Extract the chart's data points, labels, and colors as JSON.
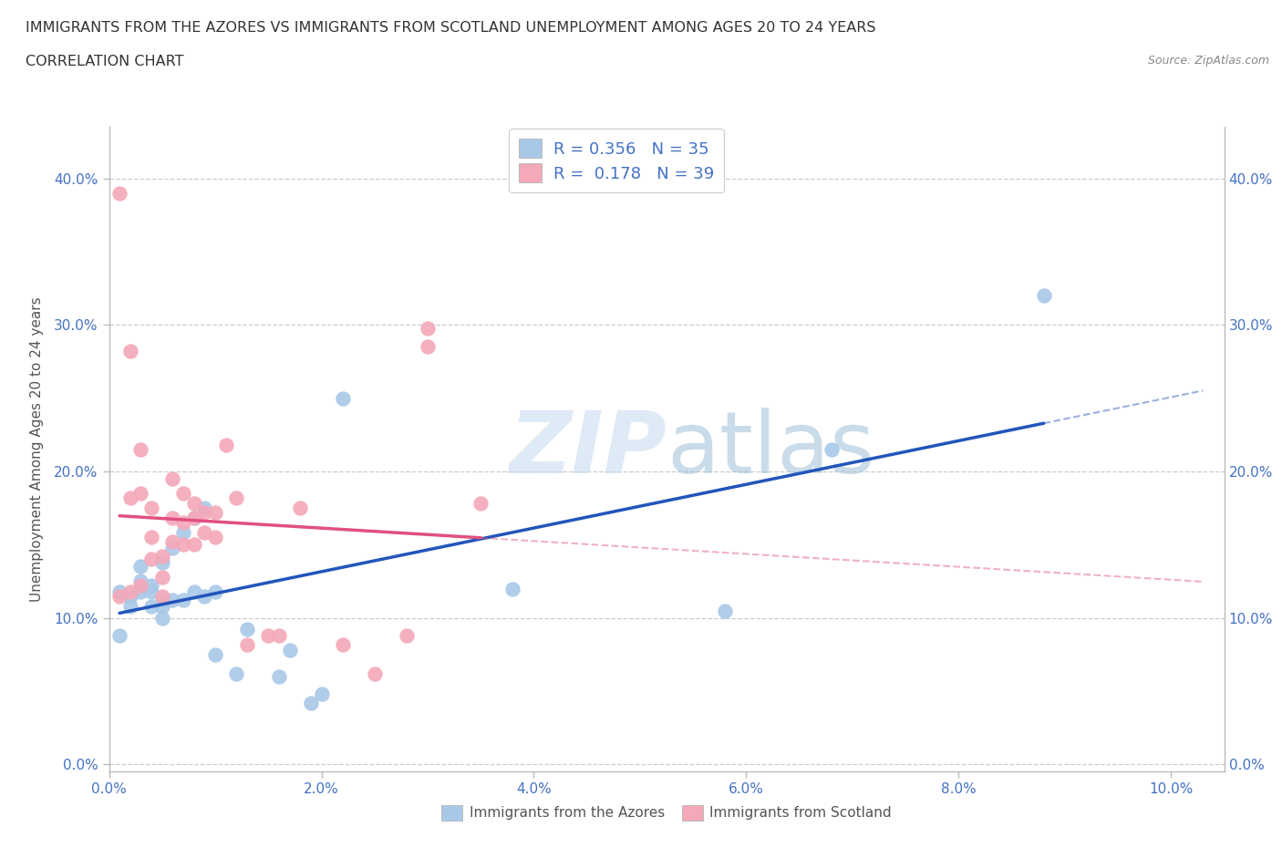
{
  "title_line1": "IMMIGRANTS FROM THE AZORES VS IMMIGRANTS FROM SCOTLAND UNEMPLOYMENT AMONG AGES 20 TO 24 YEARS",
  "title_line2": "CORRELATION CHART",
  "source_text": "Source: ZipAtlas.com",
  "ylabel": "Unemployment Among Ages 20 to 24 years",
  "xlim": [
    0.0,
    0.105
  ],
  "ylim": [
    -0.005,
    0.435
  ],
  "xticks": [
    0.0,
    0.02,
    0.04,
    0.06,
    0.08,
    0.1
  ],
  "yticks": [
    0.0,
    0.1,
    0.2,
    0.3,
    0.4
  ],
  "ytick_labels": [
    "0.0%",
    "10.0%",
    "20.0%",
    "30.0%",
    "40.0%"
  ],
  "xtick_labels": [
    "0.0%",
    "2.0%",
    "4.0%",
    "6.0%",
    "8.0%",
    "10.0%"
  ],
  "legend_r1": "0.356",
  "legend_n1": "35",
  "legend_r2": "0.178",
  "legend_n2": "39",
  "color_azores": "#a8c8e8",
  "color_scotland": "#f4a8b8",
  "color_azores_line": "#2255bb",
  "color_scotland_line": "#e05080",
  "color_tick_labels": "#4472c4",
  "watermark_color": "#c8ddf0",
  "legend_labels": [
    "Immigrants from the Azores",
    "Immigrants from Scotland"
  ],
  "azores_x": [
    0.001,
    0.001,
    0.002,
    0.002,
    0.003,
    0.003,
    0.003,
    0.004,
    0.004,
    0.004,
    0.005,
    0.005,
    0.005,
    0.005,
    0.006,
    0.006,
    0.007,
    0.007,
    0.008,
    0.008,
    0.009,
    0.009,
    0.01,
    0.01,
    0.012,
    0.013,
    0.016,
    0.017,
    0.019,
    0.02,
    0.022,
    0.038,
    0.058,
    0.068,
    0.088
  ],
  "azores_y": [
    0.118,
    0.088,
    0.108,
    0.115,
    0.118,
    0.125,
    0.135,
    0.108,
    0.118,
    0.122,
    0.1,
    0.108,
    0.112,
    0.138,
    0.112,
    0.148,
    0.112,
    0.158,
    0.118,
    0.168,
    0.175,
    0.115,
    0.118,
    0.075,
    0.062,
    0.092,
    0.06,
    0.078,
    0.042,
    0.048,
    0.25,
    0.12,
    0.105,
    0.215,
    0.32
  ],
  "scotland_x": [
    0.001,
    0.001,
    0.002,
    0.002,
    0.002,
    0.003,
    0.003,
    0.003,
    0.004,
    0.004,
    0.004,
    0.005,
    0.005,
    0.005,
    0.006,
    0.006,
    0.006,
    0.007,
    0.007,
    0.007,
    0.008,
    0.008,
    0.008,
    0.009,
    0.009,
    0.01,
    0.01,
    0.011,
    0.012,
    0.013,
    0.015,
    0.016,
    0.018,
    0.022,
    0.025,
    0.028,
    0.03,
    0.03,
    0.035
  ],
  "scotland_y": [
    0.115,
    0.39,
    0.118,
    0.182,
    0.282,
    0.122,
    0.185,
    0.215,
    0.14,
    0.155,
    0.175,
    0.115,
    0.128,
    0.142,
    0.152,
    0.168,
    0.195,
    0.15,
    0.165,
    0.185,
    0.15,
    0.168,
    0.178,
    0.158,
    0.172,
    0.155,
    0.172,
    0.218,
    0.182,
    0.082,
    0.088,
    0.088,
    0.175,
    0.082,
    0.062,
    0.088,
    0.285,
    0.298,
    0.178
  ]
}
